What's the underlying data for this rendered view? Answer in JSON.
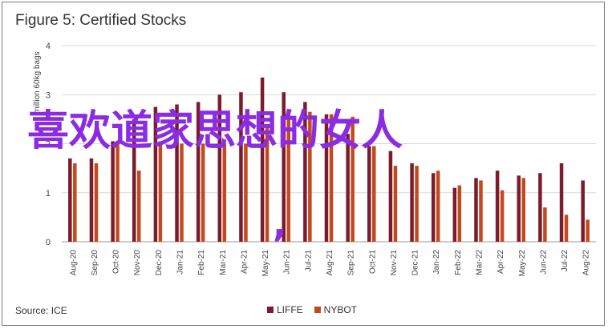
{
  "title": "Figure 5: Certified Stocks",
  "source": "Source: ICE",
  "overlay_text": "喜欢道家思想的女人",
  "overlay_comma": ",",
  "colors": {
    "liffe": "#7b1c2c",
    "nybot": "#c24a1e",
    "overlay": "#8b2be2",
    "grid": "#d9d9d9"
  },
  "chart_data": {
    "type": "bar",
    "ylabel": "million 60kg bags",
    "ylim": [
      0,
      4
    ],
    "yticks": [
      0,
      1,
      2,
      3,
      4
    ],
    "grid": true,
    "legend_position": "bottom",
    "categories": [
      "Aug-20",
      "Sep-20",
      "Oct-20",
      "Nov-20",
      "Dec-20",
      "Jan-21",
      "Feb-21",
      "Mar-21",
      "Apr-21",
      "May-21",
      "Jun-21",
      "Jul-21",
      "Aug-21",
      "Sep-21",
      "Oct-21",
      "Nov-21",
      "Dec-21",
      "Jan-22",
      "Feb-22",
      "Mar-22",
      "Apr-22",
      "May-22",
      "Jun-22",
      "Jul-22",
      "Aug-22"
    ],
    "series": [
      {
        "name": "LIFFE",
        "values": [
          1.7,
          1.7,
          2.05,
          2.5,
          2.75,
          2.8,
          2.85,
          3.0,
          3.05,
          3.35,
          3.05,
          2.85,
          2.6,
          2.2,
          1.95,
          1.85,
          1.6,
          1.4,
          1.1,
          1.3,
          1.45,
          1.35,
          1.4,
          1.6,
          1.25
        ]
      },
      {
        "name": "NYBOT",
        "values": [
          1.6,
          1.6,
          2.0,
          1.45,
          2.05,
          2.0,
          2.0,
          2.0,
          2.0,
          2.4,
          2.65,
          2.65,
          2.6,
          2.55,
          1.95,
          1.55,
          1.55,
          1.45,
          1.15,
          1.25,
          1.05,
          1.3,
          0.7,
          0.55,
          0.45
        ]
      }
    ]
  }
}
